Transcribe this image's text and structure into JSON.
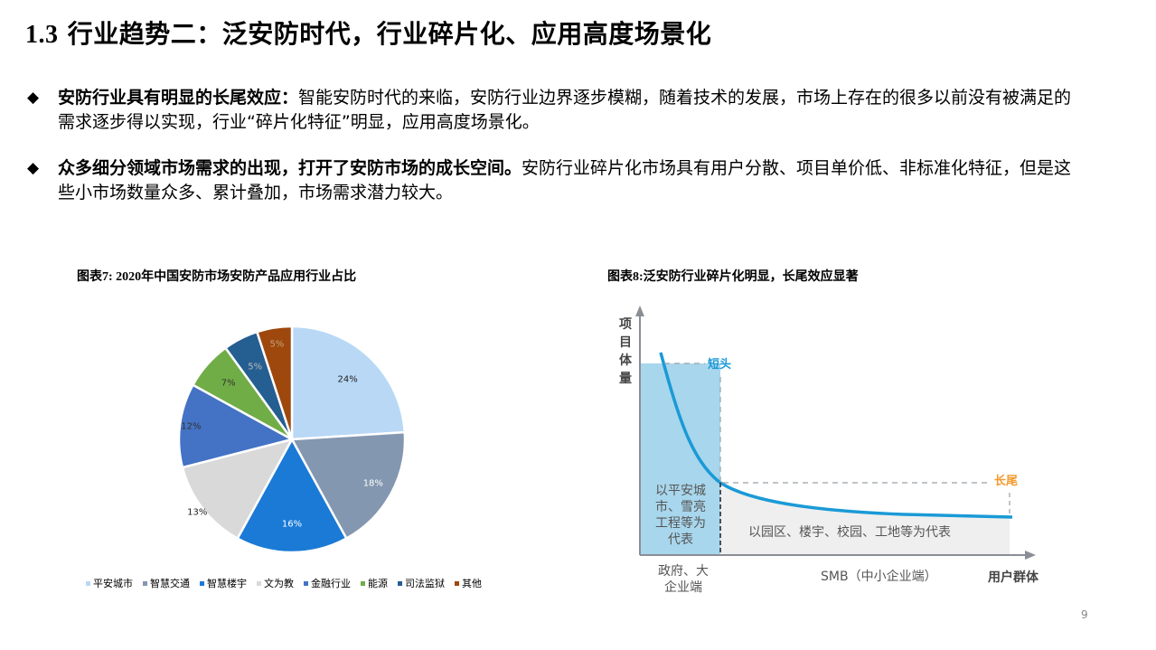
{
  "slide": {
    "title_num": "1.3",
    "title_text": "行业趋势二：泛安防时代，行业碎片化、应用高度场景化",
    "page_number": "9"
  },
  "bullets": [
    {
      "icon": "diamond",
      "bold": "安防行业具有明显的长尾效应：",
      "text": "智能安防时代的来临，安防行业边界逐步模糊，随着技术的发展，市场上存在的很多以前没有被满足的需求逐步得以实现，行业“碎片化特征”明显，应用高度场景化。"
    },
    {
      "icon": "diamond",
      "bold": "众多细分领域市场需求的出现，打开了安防市场的成长空间。",
      "text": "安防行业碎片化市场具有用户分散、项目单价低、非标准化特征，但是这些小市场数量众多、累计叠加，市场需求潜力较大。"
    }
  ],
  "chart7": {
    "title_prefix": "图表",
    "title_num": "7: 2020",
    "title_suffix": "年中国安防市场安防产品应用行业占比"
  },
  "chart8": {
    "title_prefix": "图表",
    "title_num": "8:",
    "title_suffix": "泛安防行业碎片化明显，长尾效应显著",
    "y_axis_label": "项目体量",
    "short_head_label": "短头",
    "long_tail_label": "长尾",
    "head_region_text": [
      "以平安城",
      "市、雪亮",
      "工程等为",
      "代表"
    ],
    "tail_region_text": "以园区、楼宇、校园、工地等为代表",
    "x_label_head": [
      "政府、大",
      "企业端"
    ],
    "x_label_tail": "SMB（中小企业端）",
    "x_axis_label": "用户群体",
    "colors": {
      "curve": "#1a9ad6",
      "head_fill": "#a8d6ec",
      "tail_fill": "#efefef",
      "short_head": "#1a9ad6",
      "long_tail": "#f39a2f",
      "axis": "#8a8e96"
    }
  },
  "chart_data": [
    {
      "type": "pie",
      "title": "图表7: 2020年中国安防市场安防产品应用行业占比",
      "categories": [
        "平安城市",
        "智慧交通",
        "智慧楼宇",
        "文为教",
        "金融行业",
        "能源",
        "司法监狱",
        "其他"
      ],
      "values": [
        24,
        18,
        16,
        13,
        12,
        7,
        5,
        5
      ],
      "labels": [
        "24%",
        "18%",
        "16%",
        "13%",
        "12%",
        "7%",
        "5%",
        "5%"
      ],
      "colors": [
        "#b8d8f5",
        "#8497b0",
        "#1a7ad6",
        "#d9d9d9",
        "#4472c4",
        "#70ad47",
        "#255e91",
        "#9e480e"
      ],
      "legend_position": "bottom",
      "start_angle": "top, clockwise"
    },
    {
      "type": "line",
      "title": "图表8:泛安防行业碎片化明显，长尾效应显著",
      "xlabel": "用户群体",
      "ylabel": "项目体量",
      "series": [
        {
          "name": "长尾曲线",
          "description": "steep decline at head then long flat tail"
        }
      ],
      "annotations": [
        "短头",
        "长尾",
        "以平安城市、雪亮工程等为代表",
        "以园区、楼宇、校园、工地等为代表",
        "政府、大企业端",
        "SMB（中小企业端）"
      ],
      "grid": false
    }
  ]
}
